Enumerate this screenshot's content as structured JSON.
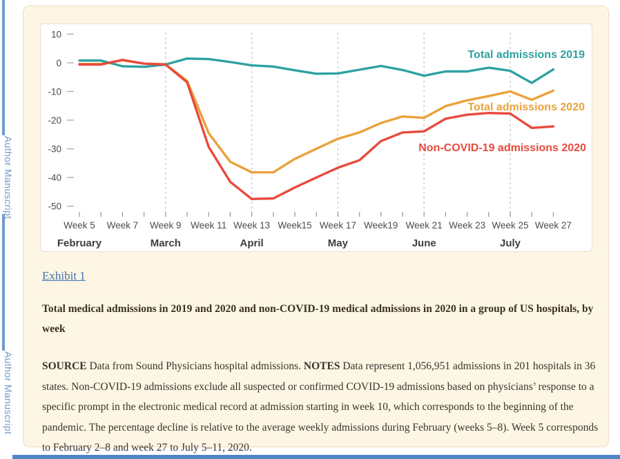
{
  "sidebar": {
    "label": "Author Manuscript",
    "color": "#6e99c7"
  },
  "chart_data": {
    "type": "line",
    "x_unit": "week",
    "x": [
      5,
      6,
      7,
      8,
      9,
      10,
      11,
      12,
      13,
      14,
      15,
      16,
      17,
      18,
      19,
      20,
      21,
      22,
      23,
      24,
      25,
      26,
      27
    ],
    "x_axis": {
      "week_tick_labels": [
        {
          "week": 5,
          "label": "Week 5"
        },
        {
          "week": 7,
          "label": "Week 7"
        },
        {
          "week": 9,
          "label": "Week 9"
        },
        {
          "week": 11,
          "label": "Week 11"
        },
        {
          "week": 13,
          "label": "Week 13"
        },
        {
          "week": 15,
          "label": "Week15"
        },
        {
          "week": 17,
          "label": "Week 17"
        },
        {
          "week": 19,
          "label": "Week19"
        },
        {
          "week": 21,
          "label": "Week 21"
        },
        {
          "week": 23,
          "label": "Week 23"
        },
        {
          "week": 25,
          "label": "Week 25"
        },
        {
          "week": 27,
          "label": "Week 27"
        }
      ],
      "month_labels": [
        {
          "week": 5,
          "label": "February"
        },
        {
          "week": 9,
          "label": "March"
        },
        {
          "week": 13,
          "label": "April"
        },
        {
          "week": 17,
          "label": "May"
        },
        {
          "week": 21,
          "label": "June"
        },
        {
          "week": 25,
          "label": "July"
        }
      ],
      "gridline_weeks": [
        9,
        13,
        17,
        21,
        25
      ]
    },
    "y_axis": {
      "tick_values": [
        10,
        0,
        -10,
        -20,
        -30,
        -40,
        -50
      ],
      "range": [
        -53,
        12
      ]
    },
    "grid": "vertical dashed lines at month starts",
    "legend_position": "inline labels at right of lines",
    "series": [
      {
        "name": "Total admissions 2019",
        "color": "#2fa1a1",
        "values": [
          0.8,
          0.8,
          -1.2,
          -1.4,
          -0.6,
          1.5,
          1.3,
          0.3,
          -0.9,
          -1.3,
          -2.6,
          -3.8,
          -3.7,
          -2.4,
          -1.1,
          -2.5,
          -4.5,
          -3.0,
          -3.0,
          -1.7,
          -2.8,
          -7.0,
          -2.3
        ]
      },
      {
        "name": "Total admissions 2020",
        "color": "#e9a23b",
        "values": [
          -0.4,
          -0.4,
          0.9,
          -0.3,
          -0.5,
          -6.3,
          -24.5,
          -34.5,
          -38.2,
          -38.2,
          -33.5,
          -30.0,
          -26.5,
          -24.3,
          -21.0,
          -18.7,
          -19.2,
          -15.1,
          -13.1,
          -11.6,
          -10.0,
          -12.9,
          -9.7
        ]
      },
      {
        "name": "Non-COVID-19 admissions 2020",
        "color": "#e84a3d",
        "values": [
          -0.6,
          -0.6,
          1.0,
          -0.3,
          -0.6,
          -6.8,
          -29.3,
          -41.5,
          -47.5,
          -47.3,
          -43.5,
          -40.0,
          -36.6,
          -34.0,
          -27.3,
          -24.3,
          -23.9,
          -19.5,
          -18.1,
          -17.5,
          -17.7,
          -22.7,
          -22.2
        ]
      }
    ]
  },
  "caption": {
    "exhibit_link": "Exhibit 1",
    "title": "Total medical admissions in 2019 and 2020 and non-COVID-19 medical admissions in 2020 in a group of US hospitals, by week",
    "source_notes_segments": [
      {
        "text": "SOURCE",
        "bold": true
      },
      {
        "text": " Data from Sound Physicians hospital admissions. ",
        "bold": false
      },
      {
        "text": "NOTES",
        "bold": true
      },
      {
        "text": " Data represent 1,056,951 admissions in 201 hospitals in 36 states. Non-COVID-19 admissions exclude all suspected or confirmed COVID-19 admissions based on physicians’ response to a specific prompt in the electronic medical record at admission starting in week 10, which corresponds to the beginning of the pandemic. The percentage decline is relative to the average weekly admissions during February (weeks 5–8). Week 5 corresponds to February 2–8 and week 27 to July 5–11, 2020.",
        "bold": false
      }
    ]
  }
}
